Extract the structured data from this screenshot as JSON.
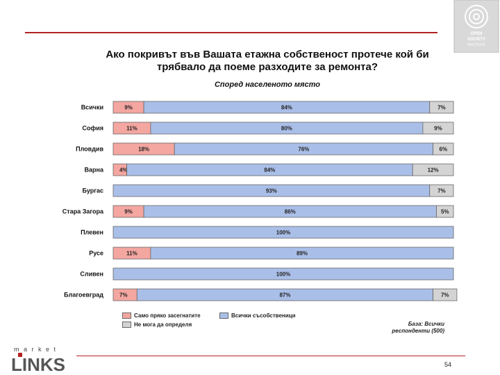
{
  "chart_data": {
    "type": "bar",
    "stacked": true,
    "orientation": "horizontal",
    "title": "Ако покривът във Вашата етажна собственост протече кой би трябвало да поеме разходите за ремонта?",
    "subtitle": "Според населеното място",
    "categories": [
      "Всички",
      "София",
      "Пловдив",
      "Варна",
      "Бургас",
      "Стара Загора",
      "Плевен",
      "Русе",
      "Сливен",
      "Благоевград"
    ],
    "series": [
      {
        "name": "Само пряко засегнатите",
        "color": "#f4a6a0",
        "values": [
          9,
          11,
          18,
          4,
          0,
          9,
          0,
          11,
          0,
          7
        ]
      },
      {
        "name": "Всички съсобственици",
        "color": "#aabfe8",
        "values": [
          84,
          80,
          76,
          84,
          93,
          86,
          100,
          89,
          100,
          87
        ]
      },
      {
        "name": "Не мога да определя",
        "color": "#d4d4d4",
        "values": [
          7,
          9,
          6,
          12,
          7,
          5,
          0,
          0,
          0,
          7
        ]
      }
    ],
    "labels": [
      [
        "9%",
        "84%",
        "7%"
      ],
      [
        "11%",
        "80%",
        "9%"
      ],
      [
        "18%",
        "76%",
        "6%"
      ],
      [
        "4%",
        "84%",
        "12%"
      ],
      [
        "",
        "93%",
        "7%"
      ],
      [
        "9%",
        "86%",
        "5%"
      ],
      [
        "",
        "100%",
        ""
      ],
      [
        "11%",
        "89%",
        ""
      ],
      [
        "",
        "100%",
        ""
      ],
      [
        "7%",
        "87%",
        "7%"
      ]
    ],
    "xlim": [
      0,
      100
    ],
    "legend_position": "bottom-left"
  },
  "base_note": [
    "База: Всички",
    "респонденти (500)"
  ],
  "page_number": "54",
  "logos": {
    "top_right": [
      "OPEN",
      "SOCIETY",
      "INSTITUTE"
    ],
    "bottom_left_top": "m a r k e t",
    "bottom_left_main": "LINKS"
  }
}
